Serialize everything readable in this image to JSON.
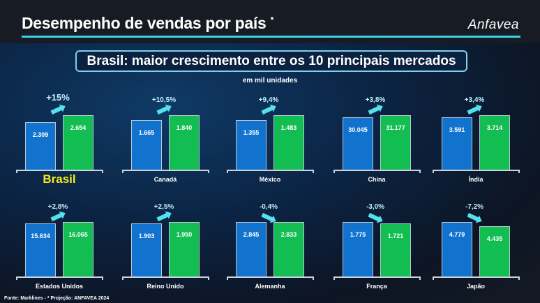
{
  "header": {
    "title": "Desempenho de vendas por país",
    "title_mark": "*",
    "logo": "Anfavea"
  },
  "banner": "Brasil: maior crescimento entre os 10 principais mercados",
  "unit_label": "em mil unidades",
  "footer": "Fonte: Marklines   -   * Projeção: ANFAVEA 2024",
  "colors": {
    "previous": "#1273cf",
    "projection": "#12bd52",
    "accent": "#3fd0e6",
    "highlight": "#f5ee1e"
  },
  "chart_data": {
    "type": "bar",
    "unit": "em mil unidades",
    "series_colors": [
      "#1273cf",
      "#12bd52"
    ],
    "panels": [
      {
        "country": "Brasil",
        "values": [
          2.309,
          2.654
        ],
        "labels": [
          "2.309",
          "2.654"
        ],
        "change": "+15%",
        "highlight": true
      },
      {
        "country": "Canadá",
        "values": [
          1.665,
          1.84
        ],
        "labels": [
          "1.665",
          "1.840"
        ],
        "change": "+10,5%"
      },
      {
        "country": "México",
        "values": [
          1.355,
          1.483
        ],
        "labels": [
          "1.355",
          "1.483"
        ],
        "change": "+9,4%"
      },
      {
        "country": "China",
        "values": [
          30.045,
          31.177
        ],
        "labels": [
          "30.045",
          "31.177"
        ],
        "change": "+3,8%"
      },
      {
        "country": "Índia",
        "values": [
          3.591,
          3.714
        ],
        "labels": [
          "3.591",
          "3.714"
        ],
        "change": "+3,4%"
      },
      {
        "country": "Estados Unidos",
        "values": [
          15.634,
          16.065
        ],
        "labels": [
          "15.634",
          "16.065"
        ],
        "change": "+2,8%"
      },
      {
        "country": "Reino Unido",
        "values": [
          1.903,
          1.95
        ],
        "labels": [
          "1.903",
          "1.950"
        ],
        "change": "+2,5%"
      },
      {
        "country": "Alemanha",
        "values": [
          2.845,
          2.833
        ],
        "labels": [
          "2.845",
          "2.833"
        ],
        "change": "-0,4%"
      },
      {
        "country": "França",
        "values": [
          1.775,
          1.721
        ],
        "labels": [
          "1.775",
          "1.721"
        ],
        "change": "-3,0%"
      },
      {
        "country": "Japão",
        "values": [
          4.779,
          4.435
        ],
        "labels": [
          "4.779",
          "4.435"
        ],
        "change": "-7,2%"
      }
    ]
  }
}
